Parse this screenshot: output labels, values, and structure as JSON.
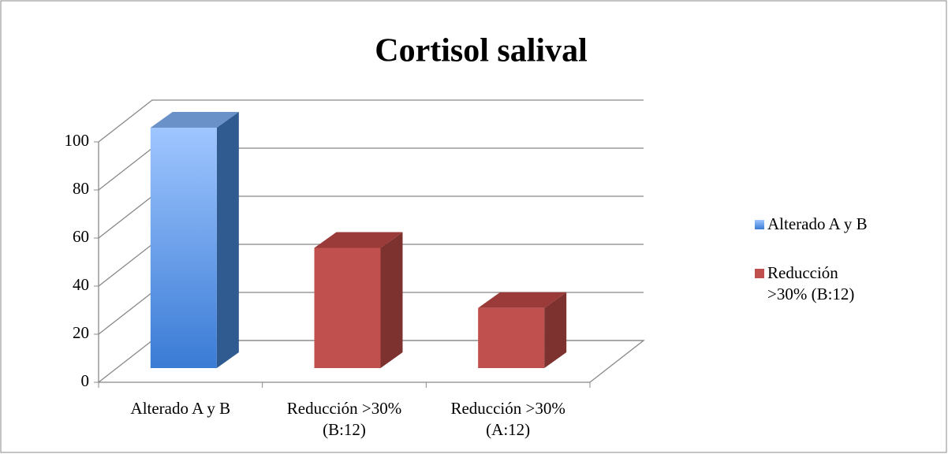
{
  "chart_data": {
    "type": "bar3d",
    "title": "Cortisol salival",
    "categories": [
      "Alterado A y B",
      "Reducción >30% (B:12)",
      "Reducción >30% (A:12)"
    ],
    "series": [
      {
        "name": "Alterado A y B",
        "color": "#4f81bd",
        "values": [
          100,
          null,
          null
        ]
      },
      {
        "name": "Reducción >30% (B:12)",
        "color": "#c0504d",
        "values": [
          null,
          50,
          25
        ]
      }
    ],
    "ylim": [
      0,
      100
    ],
    "yticks": [
      0,
      20,
      40,
      60,
      80,
      100
    ],
    "grid": true,
    "legend": "right"
  }
}
